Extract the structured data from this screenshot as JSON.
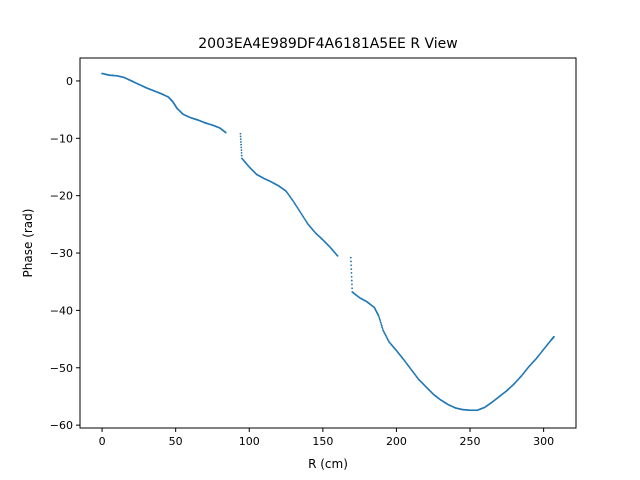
{
  "chart_data": {
    "type": "scatter",
    "title": "2003EA4E989DF4A6181A5EE R View",
    "xlabel": "R (cm)",
    "ylabel": "Phase (rad)",
    "xlim": [
      -15,
      322
    ],
    "ylim": [
      -60.5,
      4
    ],
    "xticks": [
      0,
      50,
      100,
      150,
      200,
      250,
      300
    ],
    "yticks": [
      0,
      -10,
      -20,
      -30,
      -40,
      -50,
      -60
    ],
    "grid": false,
    "legend": "none",
    "point_color": "#1f77b4",
    "series": [
      {
        "points": [
          [
            0,
            1.3
          ],
          [
            5,
            1.0
          ],
          [
            10,
            0.9
          ],
          [
            15,
            0.6
          ],
          [
            20,
            0.0
          ],
          [
            25,
            -0.6
          ],
          [
            30,
            -1.2
          ],
          [
            35,
            -1.7
          ],
          [
            40,
            -2.2
          ],
          [
            45,
            -2.8
          ],
          [
            48,
            -3.6
          ],
          [
            51,
            -4.8
          ],
          [
            55,
            -5.8
          ],
          [
            60,
            -6.4
          ],
          [
            65,
            -6.8
          ],
          [
            70,
            -7.3
          ],
          [
            75,
            -7.7
          ],
          [
            80,
            -8.2
          ],
          [
            84,
            -9.0
          ],
          [
            94,
            -9.2
          ],
          [
            95,
            -13.5
          ],
          [
            100,
            -15.0
          ],
          [
            105,
            -16.3
          ],
          [
            110,
            -17.0
          ],
          [
            115,
            -17.6
          ],
          [
            120,
            -18.3
          ],
          [
            125,
            -19.2
          ],
          [
            130,
            -21.0
          ],
          [
            135,
            -23.0
          ],
          [
            140,
            -25.0
          ],
          [
            145,
            -26.5
          ],
          [
            150,
            -27.7
          ],
          [
            155,
            -29.0
          ],
          [
            160,
            -30.5
          ],
          [
            169,
            -30.8
          ],
          [
            170,
            -36.8
          ],
          [
            175,
            -37.8
          ],
          [
            180,
            -38.5
          ],
          [
            185,
            -39.5
          ],
          [
            188,
            -41.0
          ],
          [
            191,
            -43.5
          ],
          [
            195,
            -45.5
          ],
          [
            200,
            -47.0
          ],
          [
            205,
            -48.6
          ],
          [
            210,
            -50.3
          ],
          [
            215,
            -52.0
          ],
          [
            220,
            -53.3
          ],
          [
            225,
            -54.6
          ],
          [
            230,
            -55.6
          ],
          [
            235,
            -56.4
          ],
          [
            240,
            -57.0
          ],
          [
            245,
            -57.3
          ],
          [
            250,
            -57.4
          ],
          [
            255,
            -57.4
          ],
          [
            260,
            -56.9
          ],
          [
            265,
            -56.0
          ],
          [
            270,
            -55.0
          ],
          [
            275,
            -54.0
          ],
          [
            280,
            -52.8
          ],
          [
            285,
            -51.4
          ],
          [
            290,
            -49.8
          ],
          [
            295,
            -48.4
          ],
          [
            300,
            -46.8
          ],
          [
            305,
            -45.2
          ],
          [
            307,
            -44.6
          ]
        ]
      }
    ]
  }
}
